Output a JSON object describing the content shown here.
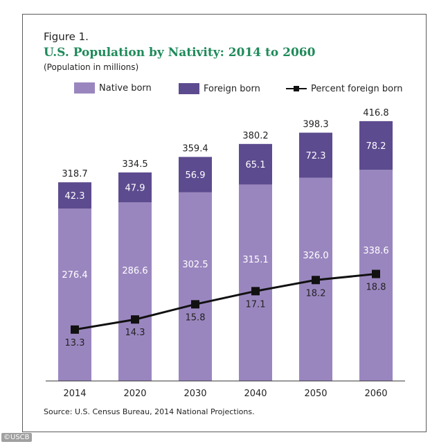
{
  "figure_label": "Figure 1.",
  "watermark": "©USCB",
  "colors": {
    "native_born": "#9a86bf",
    "foreign_born": "#5d4b8f",
    "line": "#111111",
    "title": "#1f8a5a"
  },
  "chart_data": {
    "type": "bar",
    "stacked": true,
    "title": "U.S. Population by Nativity: 2014 to 2060",
    "subtitle": "(Population in millions)",
    "source": "Source: U.S. Census Bureau, 2014 National Projections.",
    "categories": [
      "2014",
      "2020",
      "2030",
      "2040",
      "2050",
      "2060"
    ],
    "totals": [
      "318.7",
      "334.5",
      "359.4",
      "380.2",
      "398.3",
      "416.8"
    ],
    "series": [
      {
        "name": "Native born",
        "values": [
          276.4,
          286.6,
          302.5,
          315.1,
          326.0,
          338.6
        ],
        "labels": [
          "276.4",
          "286.6",
          "302.5",
          "315.1",
          "326.0",
          "338.6"
        ]
      },
      {
        "name": "Foreign born",
        "values": [
          42.3,
          47.9,
          56.9,
          65.1,
          72.3,
          78.2
        ],
        "labels": [
          "42.3",
          "47.9",
          "56.9",
          "65.1",
          "72.3",
          "78.2"
        ]
      }
    ],
    "line_series": {
      "name": "Percent foreign born",
      "values": [
        13.3,
        14.3,
        15.8,
        17.1,
        18.2,
        18.8
      ],
      "labels": [
        "13.3",
        "14.3",
        "15.8",
        "17.1",
        "18.2",
        "18.8"
      ]
    },
    "ylim": [
      0,
      420
    ],
    "grid": false,
    "legend_position": "top"
  }
}
